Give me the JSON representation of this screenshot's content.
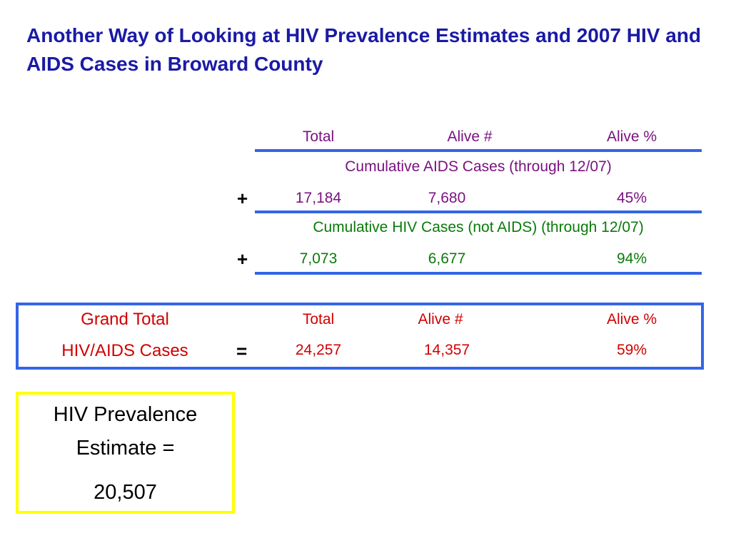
{
  "title": "Another Way of Looking at HIV Prevalence Estimates and 2007 HIV and AIDS Cases in Broward County",
  "columns": {
    "total": "Total",
    "alive_num": "Alive #",
    "alive_pct": "Alive %"
  },
  "aids": {
    "label": "Cumulative AIDS Cases (through 12/07)",
    "sign": "+",
    "total": "17,184",
    "alive_num": "7,680",
    "alive_pct": "45%"
  },
  "hiv": {
    "label": "Cumulative HIV Cases (not AIDS) (through 12/07)",
    "sign": "+",
    "total": "7,073",
    "alive_num": "6,677",
    "alive_pct": "94%"
  },
  "grand": {
    "label_line1": "Grand Total",
    "label_line2": "HIV/AIDS Cases",
    "sign": "=",
    "header_total": "Total",
    "header_alive_num": "Alive #",
    "header_alive_pct": "Alive %",
    "total": "24,257",
    "alive_num": "14,357",
    "alive_pct": "59%"
  },
  "prevalence": {
    "line1": "HIV Prevalence",
    "line2": "Estimate =",
    "value": "20,507"
  },
  "colors": {
    "title": "#1a1aa6",
    "aids_text": "#7a1280",
    "hiv_text": "#0a7a0a",
    "grand_text": "#d10000",
    "rule": "#3366e6",
    "prevalence_border": "#ffff00"
  }
}
